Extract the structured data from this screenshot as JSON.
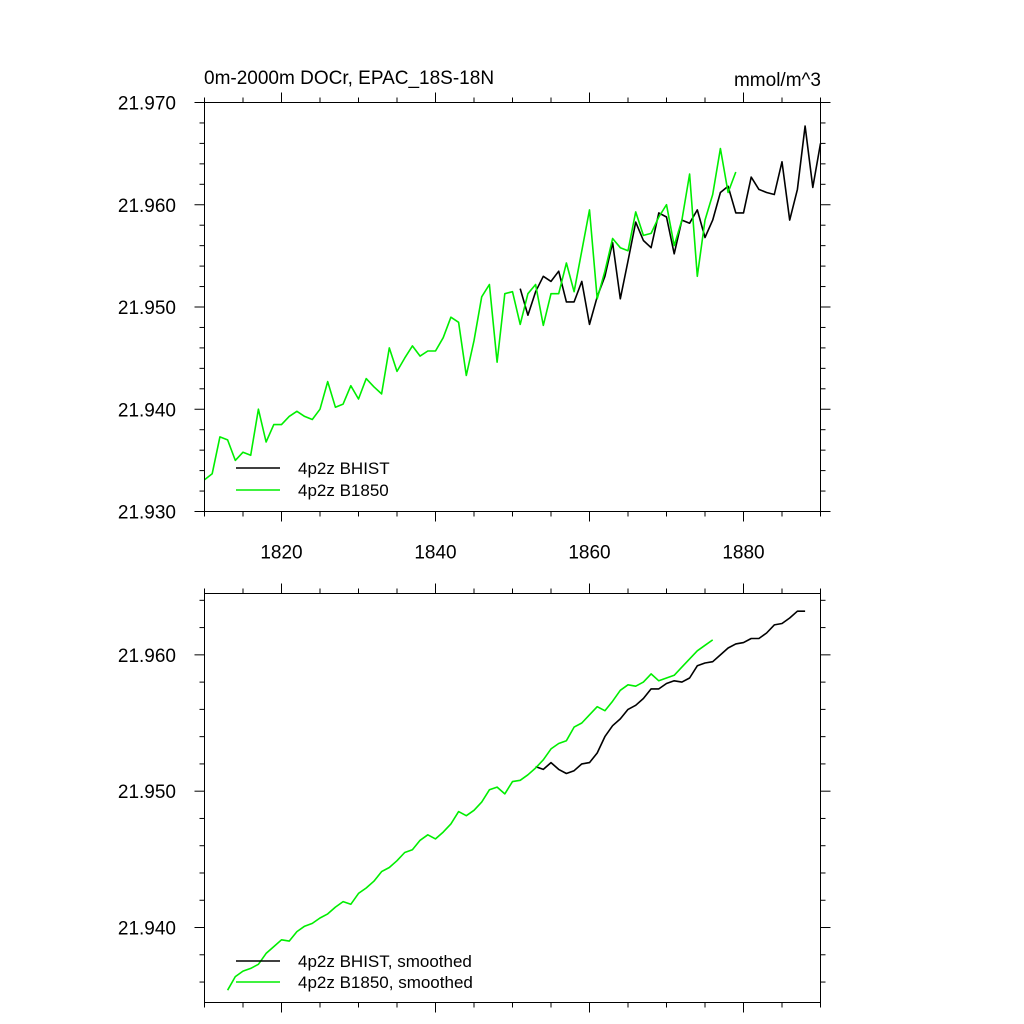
{
  "chart_data": [
    {
      "type": "line",
      "title": "0m-2000m DOCr, EPAC_18S-18N",
      "units": "mmol/m^3",
      "xlim": [
        1810,
        1890
      ],
      "ylim": [
        21.93,
        21.97
      ],
      "xticks": [
        1820,
        1840,
        1860,
        1880
      ],
      "xtick_labels": [
        "1820",
        "1840",
        "1860",
        "1880"
      ],
      "yticks": [
        21.93,
        21.94,
        21.95,
        21.96,
        21.97
      ],
      "ytick_labels": [
        "21.930",
        "21.940",
        "21.950",
        "21.960",
        "21.970"
      ],
      "legend_position": "bottom-left",
      "series": [
        {
          "name": "4p2z BHIST",
          "color": "#000000",
          "x": [
            1851,
            1852,
            1853,
            1854,
            1855,
            1856,
            1857,
            1858,
            1859,
            1860,
            1861,
            1862,
            1863,
            1864,
            1865,
            1866,
            1867,
            1868,
            1869,
            1870,
            1871,
            1872,
            1873,
            1874,
            1875,
            1876,
            1877,
            1878,
            1879,
            1880,
            1881,
            1882,
            1883,
            1884,
            1885,
            1886,
            1887,
            1888,
            1889,
            1890
          ],
          "y": [
            21.9518,
            21.9492,
            21.9515,
            21.953,
            21.9525,
            21.9535,
            21.9505,
            21.9505,
            21.9525,
            21.9483,
            21.951,
            21.953,
            21.9563,
            21.9508,
            21.9545,
            21.9583,
            21.9565,
            21.9558,
            21.9592,
            21.9588,
            21.9552,
            21.9585,
            21.9582,
            21.9595,
            21.9568,
            21.9585,
            21.9612,
            21.9618,
            21.9592,
            21.9592,
            21.9627,
            21.9615,
            21.9612,
            21.961,
            21.9642,
            21.9585,
            21.9615,
            21.9677,
            21.9617,
            21.966
          ]
        },
        {
          "name": "4p2z B1850",
          "color": "#00ee00",
          "x": [
            1810,
            1811,
            1812,
            1813,
            1814,
            1815,
            1816,
            1817,
            1818,
            1819,
            1820,
            1821,
            1822,
            1823,
            1824,
            1825,
            1826,
            1827,
            1828,
            1829,
            1830,
            1831,
            1832,
            1833,
            1834,
            1835,
            1836,
            1837,
            1838,
            1839,
            1840,
            1841,
            1842,
            1843,
            1844,
            1845,
            1846,
            1847,
            1848,
            1849,
            1850,
            1851,
            1852,
            1853,
            1854,
            1855,
            1856,
            1857,
            1858,
            1859,
            1860,
            1861,
            1862,
            1863,
            1864,
            1865,
            1866,
            1867,
            1868,
            1869,
            1870,
            1871,
            1872,
            1873,
            1874,
            1875,
            1876,
            1877,
            1878,
            1879
          ],
          "y": [
            21.9331,
            21.9337,
            21.9373,
            21.937,
            21.935,
            21.9358,
            21.9355,
            21.94,
            21.9368,
            21.9385,
            21.9385,
            21.9393,
            21.9398,
            21.9393,
            21.939,
            21.94,
            21.9427,
            21.9402,
            21.9405,
            21.9423,
            21.941,
            21.943,
            21.9422,
            21.9415,
            21.946,
            21.9437,
            21.945,
            21.9462,
            21.9452,
            21.9457,
            21.9457,
            21.947,
            21.949,
            21.9485,
            21.9433,
            21.9467,
            21.951,
            21.9522,
            21.9446,
            21.9513,
            21.9515,
            21.9483,
            21.9513,
            21.9522,
            21.9482,
            21.9513,
            21.9513,
            21.9543,
            21.9515,
            21.9555,
            21.9595,
            21.9508,
            21.9535,
            21.9567,
            21.9558,
            21.9555,
            21.9593,
            21.957,
            21.9572,
            21.9588,
            21.96,
            21.956,
            21.9585,
            21.963,
            21.953,
            21.9585,
            21.961,
            21.9655,
            21.9612,
            21.9632
          ]
        }
      ]
    },
    {
      "type": "line",
      "title": "",
      "xlim": [
        1810,
        1890
      ],
      "ylim": [
        21.9345,
        21.9645
      ],
      "xticks": [
        1820,
        1840,
        1860,
        1880
      ],
      "xtick_labels": [],
      "yticks": [
        21.94,
        21.95,
        21.96
      ],
      "ytick_labels": [
        "21.940",
        "21.950",
        "21.960"
      ],
      "legend_position": "bottom-left",
      "series": [
        {
          "name": "4p2z BHIST, smoothed",
          "color": "#000000",
          "x": [
            1853,
            1854,
            1855,
            1856,
            1857,
            1858,
            1859,
            1860,
            1861,
            1862,
            1863,
            1864,
            1865,
            1866,
            1867,
            1868,
            1869,
            1870,
            1871,
            1872,
            1873,
            1874,
            1875,
            1876,
            1877,
            1878,
            1879,
            1880,
            1881,
            1882,
            1883,
            1884,
            1885,
            1886,
            1887,
            1888
          ],
          "y": [
            21.9518,
            21.9516,
            21.9521,
            21.9516,
            21.9513,
            21.9515,
            21.952,
            21.9521,
            21.9528,
            21.954,
            21.9548,
            21.9553,
            21.956,
            21.9563,
            21.9568,
            21.9575,
            21.9575,
            21.9579,
            21.9581,
            21.958,
            21.9583,
            21.9592,
            21.9594,
            21.9595,
            21.96,
            21.9605,
            21.9608,
            21.9609,
            21.9612,
            21.9612,
            21.9616,
            21.9622,
            21.9623,
            21.9627,
            21.9632,
            21.9632
          ]
        },
        {
          "name": "4p2z B1850, smoothed",
          "color": "#00ee00",
          "x": [
            1813,
            1814,
            1815,
            1816,
            1817,
            1818,
            1819,
            1820,
            1821,
            1822,
            1823,
            1824,
            1825,
            1826,
            1827,
            1828,
            1829,
            1830,
            1831,
            1832,
            1833,
            1834,
            1835,
            1836,
            1837,
            1838,
            1839,
            1840,
            1841,
            1842,
            1843,
            1844,
            1845,
            1846,
            1847,
            1848,
            1849,
            1850,
            1851,
            1852,
            1853,
            1854,
            1855,
            1856,
            1857,
            1858,
            1859,
            1860,
            1861,
            1862,
            1863,
            1864,
            1865,
            1866,
            1867,
            1868,
            1869,
            1870,
            1871,
            1872,
            1873,
            1874,
            1875,
            1876
          ],
          "y": [
            21.9354,
            21.9364,
            21.9368,
            21.937,
            21.9373,
            21.9381,
            21.9386,
            21.9391,
            21.939,
            21.9397,
            21.9401,
            21.9403,
            21.9407,
            21.941,
            21.9415,
            21.9419,
            21.9417,
            21.9425,
            21.9429,
            21.9434,
            21.9441,
            21.9444,
            21.9449,
            21.9455,
            21.9457,
            21.9464,
            21.9468,
            21.9465,
            21.947,
            21.9476,
            21.9485,
            21.9482,
            21.9486,
            21.9492,
            21.9501,
            21.9503,
            21.9498,
            21.9507,
            21.9508,
            21.9512,
            21.9517,
            21.9523,
            21.9531,
            21.9535,
            21.9537,
            21.9547,
            21.955,
            21.9556,
            21.9562,
            21.9559,
            21.9566,
            21.9574,
            21.9578,
            21.9577,
            21.958,
            21.9586,
            21.9581,
            21.9583,
            21.9585,
            21.9591,
            21.9597,
            21.9603,
            21.9607,
            21.9611
          ]
        }
      ]
    }
  ]
}
